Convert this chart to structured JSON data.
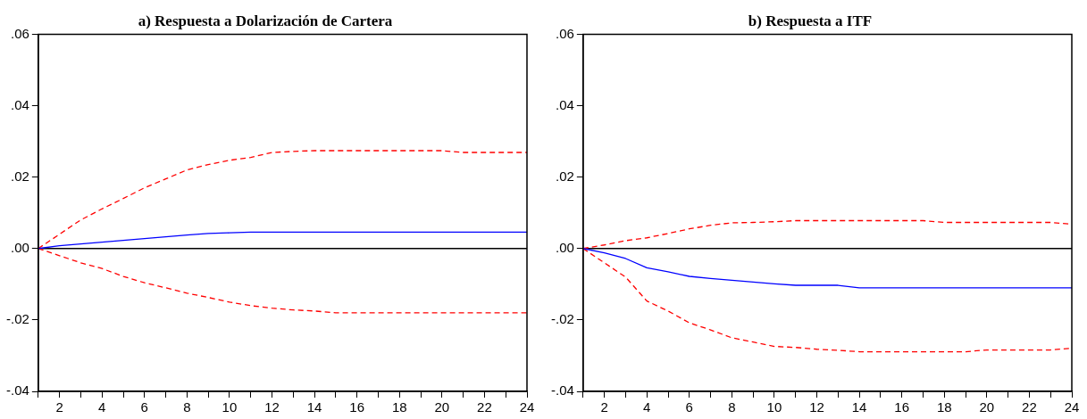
{
  "chart_data": [
    {
      "type": "line",
      "title": "a) Respuesta a Dolarización de Cartera",
      "x": [
        1,
        2,
        3,
        4,
        5,
        6,
        7,
        8,
        9,
        10,
        11,
        12,
        13,
        14,
        15,
        16,
        17,
        18,
        19,
        20,
        21,
        22,
        23,
        24
      ],
      "series": [
        {
          "color": "#0000ff",
          "line_style": "solid",
          "values": [
            0,
            0.0008,
            0.0013,
            0.0018,
            0.0023,
            0.0028,
            0.0033,
            0.0038,
            0.0042,
            0.0044,
            0.0046,
            0.0046,
            0.0046,
            0.0046,
            0.0046,
            0.0046,
            0.0046,
            0.0046,
            0.0046,
            0.0046,
            0.0046,
            0.0046,
            0.0046,
            0.0046
          ]
        },
        {
          "color": "#ff0000",
          "line_style": "dashed",
          "values": [
            0,
            0.004,
            0.008,
            0.0111,
            0.014,
            0.017,
            0.0195,
            0.022,
            0.0235,
            0.0247,
            0.0255,
            0.0269,
            0.0272,
            0.0274,
            0.0274,
            0.0274,
            0.0274,
            0.0274,
            0.0274,
            0.0274,
            0.0269,
            0.0269,
            0.0269,
            0.0269
          ]
        },
        {
          "color": "#ff0000",
          "line_style": "dashed",
          "values": [
            0,
            -0.002,
            -0.004,
            -0.0056,
            -0.0078,
            -0.0096,
            -0.011,
            -0.0125,
            -0.0137,
            -0.015,
            -0.016,
            -0.0167,
            -0.0172,
            -0.0175,
            -0.018,
            -0.018,
            -0.018,
            -0.018,
            -0.018,
            -0.018,
            -0.018,
            -0.018,
            -0.018,
            -0.018
          ]
        }
      ],
      "xlim": [
        1,
        24
      ],
      "xticks": [
        {
          "value": 1,
          "label": null
        },
        2,
        {
          "value": 3,
          "label": null
        },
        4,
        {
          "value": 5,
          "label": null
        },
        6,
        {
          "value": 7,
          "label": null
        },
        8,
        {
          "value": 9,
          "label": null
        },
        10,
        {
          "value": 11,
          "label": null
        },
        12,
        {
          "value": 13,
          "label": null
        },
        14,
        {
          "value": 15,
          "label": null
        },
        16,
        {
          "value": 17,
          "label": null
        },
        18,
        {
          "value": 19,
          "label": null
        },
        20,
        {
          "value": 21,
          "label": null
        },
        22,
        {
          "value": 23,
          "label": null
        },
        24
      ],
      "ylim": [
        -0.04,
        0.06
      ],
      "yticks": [
        {
          "value": -0.04,
          "label": "-.04"
        },
        {
          "value": -0.02,
          "label": "-.02"
        },
        {
          "value": 0,
          "label": ".00"
        },
        {
          "value": 0.02,
          "label": ".02"
        },
        {
          "value": 0.04,
          "label": ".04"
        },
        {
          "value": 0.06,
          "label": ".06"
        }
      ],
      "ref_lines": [
        {
          "axis": "y",
          "value": 0,
          "color": "#000000",
          "line_style": "solid"
        }
      ],
      "grid": false,
      "legend": false,
      "marker": "none"
    },
    {
      "type": "line",
      "title": "b) Respuesta a ITF",
      "x": [
        1,
        2,
        3,
        4,
        5,
        6,
        7,
        8,
        9,
        10,
        11,
        12,
        13,
        14,
        15,
        16,
        17,
        18,
        19,
        20,
        21,
        22,
        23,
        24
      ],
      "series": [
        {
          "color": "#0000ff",
          "line_style": "solid",
          "values": [
            0,
            -0.0012,
            -0.0028,
            -0.0054,
            -0.0065,
            -0.0078,
            -0.0084,
            -0.0089,
            -0.0094,
            -0.0099,
            -0.0103,
            -0.0103,
            -0.0103,
            -0.011,
            -0.011,
            -0.011,
            -0.011,
            -0.011,
            -0.011,
            -0.011,
            -0.011,
            -0.011,
            -0.011,
            -0.011
          ]
        },
        {
          "color": "#ff0000",
          "line_style": "dashed",
          "values": [
            0,
            0.001,
            0.0022,
            0.003,
            0.0042,
            0.0055,
            0.0065,
            0.0072,
            0.0073,
            0.0075,
            0.0078,
            0.0078,
            0.0078,
            0.0078,
            0.0078,
            0.0078,
            0.0078,
            0.0073,
            0.0073,
            0.0073,
            0.0073,
            0.0073,
            0.0073,
            0.0068
          ]
        },
        {
          "color": "#ff0000",
          "line_style": "dashed",
          "values": [
            0,
            -0.004,
            -0.008,
            -0.0147,
            -0.0175,
            -0.0208,
            -0.0228,
            -0.025,
            -0.0262,
            -0.0274,
            -0.0277,
            -0.0282,
            -0.0285,
            -0.0289,
            -0.0289,
            -0.0289,
            -0.0289,
            -0.0289,
            -0.0289,
            -0.0284,
            -0.0284,
            -0.0284,
            -0.0284,
            -0.0279
          ]
        }
      ],
      "xlim": [
        1,
        24
      ],
      "xticks": [
        {
          "value": 1,
          "label": null
        },
        2,
        {
          "value": 3,
          "label": null
        },
        4,
        {
          "value": 5,
          "label": null
        },
        6,
        {
          "value": 7,
          "label": null
        },
        8,
        {
          "value": 9,
          "label": null
        },
        10,
        {
          "value": 11,
          "label": null
        },
        12,
        {
          "value": 13,
          "label": null
        },
        14,
        {
          "value": 15,
          "label": null
        },
        16,
        {
          "value": 17,
          "label": null
        },
        18,
        {
          "value": 19,
          "label": null
        },
        20,
        {
          "value": 21,
          "label": null
        },
        22,
        {
          "value": 23,
          "label": null
        },
        24
      ],
      "ylim": [
        -0.04,
        0.06
      ],
      "yticks": [
        {
          "value": -0.04,
          "label": "-.04"
        },
        {
          "value": -0.02,
          "label": "-.02"
        },
        {
          "value": 0,
          "label": ".00"
        },
        {
          "value": 0.02,
          "label": ".02"
        },
        {
          "value": 0.04,
          "label": ".04"
        },
        {
          "value": 0.06,
          "label": ".06"
        }
      ],
      "ref_lines": [
        {
          "axis": "y",
          "value": 0,
          "color": "#000000",
          "line_style": "solid"
        }
      ],
      "grid": false,
      "legend": false,
      "marker": "none"
    }
  ]
}
